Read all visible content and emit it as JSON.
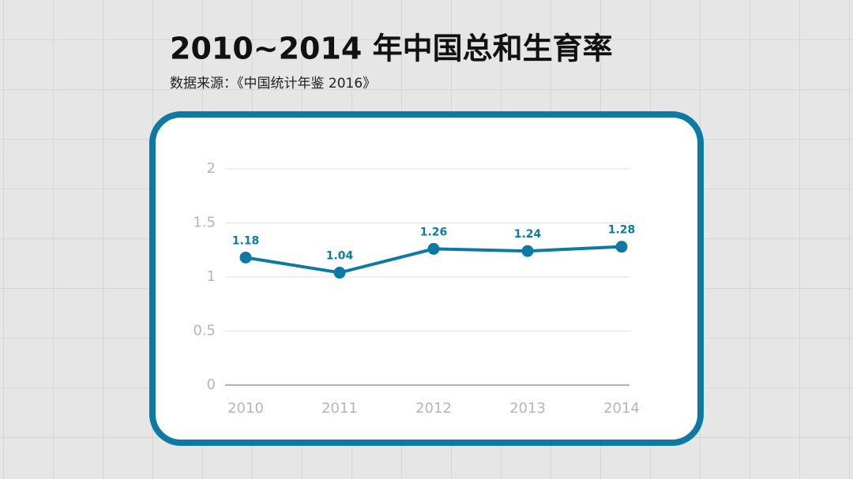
{
  "chart_data": {
    "type": "line",
    "title": "2010~2014 年中国总和生育率",
    "subtitle": "数据来源：《中国统计年鉴 2016》",
    "categories": [
      "2010",
      "2011",
      "2012",
      "2013",
      "2014"
    ],
    "series": [
      {
        "name": "总和生育率",
        "color": "#0e7aa3",
        "values": [
          1.18,
          1.04,
          1.26,
          1.24,
          1.28
        ]
      }
    ],
    "ylim": [
      0,
      2
    ],
    "yticks": [
      0,
      0.5,
      1,
      1.5,
      2
    ],
    "grid": true
  }
}
